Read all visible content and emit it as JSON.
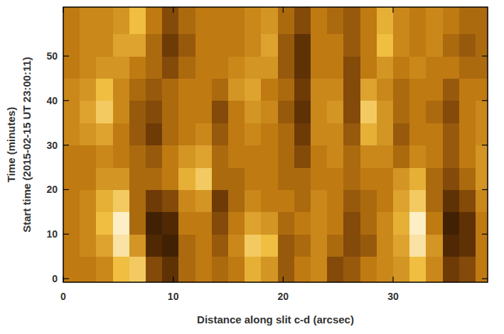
{
  "chart_data": {
    "type": "heatmap",
    "xlabel": "Distance along slit c-d (arcsec)",
    "ylabel": "Time (minutes)",
    "ylabel_sub": "Start time (2015-02-15 UT 23:00:11)",
    "xlim": [
      0,
      38.6
    ],
    "ylim": [
      -0.8,
      61
    ],
    "xticks": [
      0,
      10,
      20,
      30
    ],
    "yticks": [
      0,
      10,
      20,
      30,
      40,
      50
    ],
    "zlim": [
      0,
      1
    ],
    "x_edges": [
      0,
      1.5,
      3,
      4.5,
      6,
      7.5,
      9,
      10.5,
      12,
      13.5,
      15,
      16.5,
      18,
      19.5,
      21,
      22.5,
      24,
      25.5,
      27,
      28.5,
      30,
      31.5,
      33,
      34.5,
      36,
      37.5,
      38.6
    ],
    "y_edges": [
      -0.8,
      5,
      10,
      15,
      20,
      25,
      30,
      35,
      40,
      45,
      50,
      55,
      61
    ],
    "cells": [
      [
        0.5,
        0.5,
        0.55,
        0.75,
        0.8,
        0.35,
        0.25,
        0.45,
        0.5,
        0.45,
        0.5,
        0.7,
        0.6,
        0.4,
        0.5,
        0.55,
        0.35,
        0.4,
        0.5,
        0.55,
        0.6,
        0.75,
        0.55,
        0.3,
        0.35,
        0.5
      ],
      [
        0.5,
        0.55,
        0.65,
        0.9,
        0.6,
        0.2,
        0.15,
        0.45,
        0.5,
        0.4,
        0.55,
        0.8,
        0.75,
        0.4,
        0.45,
        0.55,
        0.45,
        0.35,
        0.4,
        0.55,
        0.65,
        0.9,
        0.6,
        0.2,
        0.25,
        0.5
      ],
      [
        0.5,
        0.55,
        0.75,
        0.95,
        0.45,
        0.15,
        0.2,
        0.5,
        0.5,
        0.35,
        0.5,
        0.65,
        0.6,
        0.45,
        0.5,
        0.55,
        0.5,
        0.35,
        0.45,
        0.55,
        0.7,
        0.95,
        0.5,
        0.15,
        0.25,
        0.5
      ],
      [
        0.5,
        0.55,
        0.7,
        0.8,
        0.45,
        0.3,
        0.35,
        0.55,
        0.6,
        0.3,
        0.45,
        0.55,
        0.5,
        0.5,
        0.45,
        0.55,
        0.5,
        0.4,
        0.45,
        0.5,
        0.65,
        0.8,
        0.45,
        0.25,
        0.35,
        0.55
      ],
      [
        0.5,
        0.5,
        0.6,
        0.6,
        0.45,
        0.45,
        0.5,
        0.7,
        0.8,
        0.45,
        0.45,
        0.5,
        0.5,
        0.45,
        0.45,
        0.5,
        0.5,
        0.45,
        0.5,
        0.5,
        0.6,
        0.7,
        0.45,
        0.35,
        0.45,
        0.6
      ],
      [
        0.5,
        0.5,
        0.55,
        0.5,
        0.45,
        0.4,
        0.5,
        0.6,
        0.65,
        0.45,
        0.5,
        0.5,
        0.5,
        0.45,
        0.35,
        0.5,
        0.55,
        0.45,
        0.55,
        0.55,
        0.45,
        0.55,
        0.5,
        0.4,
        0.5,
        0.6
      ],
      [
        0.55,
        0.6,
        0.65,
        0.5,
        0.4,
        0.3,
        0.45,
        0.5,
        0.55,
        0.4,
        0.5,
        0.55,
        0.5,
        0.45,
        0.3,
        0.55,
        0.55,
        0.4,
        0.7,
        0.6,
        0.4,
        0.5,
        0.5,
        0.4,
        0.5,
        0.55
      ],
      [
        0.55,
        0.65,
        0.8,
        0.55,
        0.4,
        0.35,
        0.45,
        0.5,
        0.5,
        0.35,
        0.5,
        0.6,
        0.55,
        0.4,
        0.25,
        0.55,
        0.6,
        0.35,
        0.8,
        0.6,
        0.45,
        0.5,
        0.45,
        0.35,
        0.5,
        0.55
      ],
      [
        0.55,
        0.6,
        0.75,
        0.55,
        0.45,
        0.4,
        0.45,
        0.5,
        0.5,
        0.45,
        0.6,
        0.65,
        0.5,
        0.45,
        0.3,
        0.55,
        0.55,
        0.35,
        0.65,
        0.55,
        0.45,
        0.5,
        0.5,
        0.4,
        0.5,
        0.5
      ],
      [
        0.5,
        0.55,
        0.6,
        0.6,
        0.5,
        0.45,
        0.35,
        0.45,
        0.5,
        0.5,
        0.55,
        0.6,
        0.6,
        0.4,
        0.25,
        0.5,
        0.5,
        0.35,
        0.5,
        0.6,
        0.5,
        0.55,
        0.5,
        0.5,
        0.45,
        0.45
      ],
      [
        0.5,
        0.55,
        0.55,
        0.65,
        0.65,
        0.45,
        0.3,
        0.4,
        0.5,
        0.5,
        0.5,
        0.55,
        0.65,
        0.4,
        0.25,
        0.5,
        0.5,
        0.4,
        0.5,
        0.75,
        0.55,
        0.5,
        0.55,
        0.45,
        0.4,
        0.45
      ],
      [
        0.5,
        0.55,
        0.55,
        0.6,
        0.75,
        0.5,
        0.35,
        0.45,
        0.5,
        0.5,
        0.5,
        0.55,
        0.6,
        0.45,
        0.35,
        0.5,
        0.45,
        0.4,
        0.5,
        0.7,
        0.55,
        0.5,
        0.55,
        0.5,
        0.45,
        0.45
      ]
    ]
  }
}
